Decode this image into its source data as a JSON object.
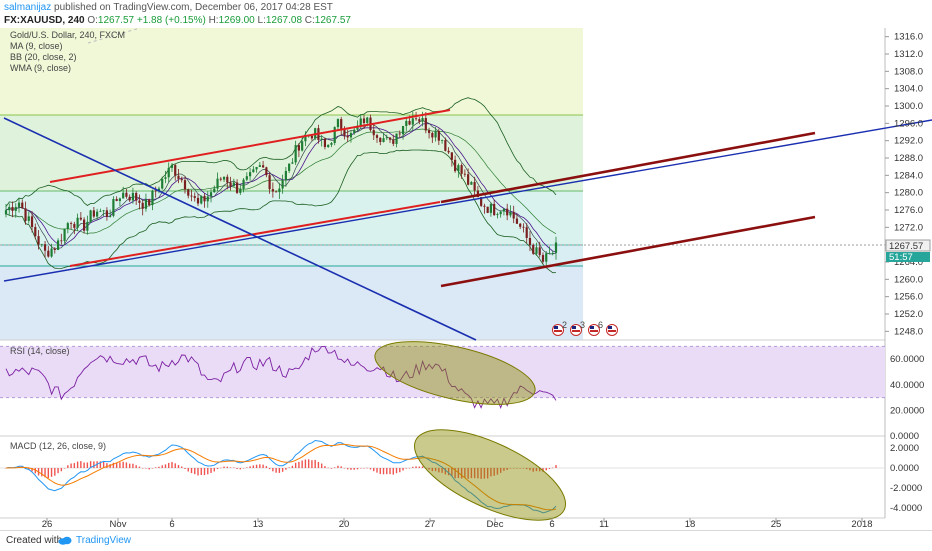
{
  "header": {
    "author": "salmanijaz",
    "published_text": "published on TradingView.com, December 06, 2017 04:28 EST",
    "symbol": "FX:XAUUSD, 240",
    "ohlc_prefix": "O:",
    "open": "1267.57",
    "change": "+1.88 (+0.15%)",
    "high_label": "H:",
    "high": "1269.00",
    "low_label": "L:",
    "low": "1267.08",
    "close_label": "C:",
    "close": "1267.57"
  },
  "legend": {
    "title": "Gold/U.S. Dollar, 240, FXCM",
    "ma": "MA (9, close)",
    "bb": "BB (20, close, 2)",
    "wma": "WMA (9, close)",
    "rsi": "RSI (14, close)",
    "macd": "MACD (12, 26, close, 9)"
  },
  "footer": {
    "created_with": "Created with",
    "brand": "TradingView"
  },
  "colors": {
    "candle_up": "#1e7d34",
    "candle_down": "#7a1f1f",
    "channel_red": "#e02020",
    "trend_blue": "#1a2fb0",
    "dark_red": "#8b0f0f",
    "rsi_line": "#7b1fa2",
    "macd_line": "#2196f3",
    "signal_line": "#f57c00",
    "ellipse_fill": "#8a8a00"
  },
  "chart_data": {
    "type": "candlestick",
    "price_axis": {
      "ticks": [
        "1316.0",
        "1312.0",
        "1308.0",
        "1304.0",
        "1300.0",
        "1296.0",
        "1292.0",
        "1288.0",
        "1284.0",
        "1280.0",
        "1276.0",
        "1272.0",
        "1268.0",
        "1264.0",
        "1260.0",
        "1256.0",
        "1252.0",
        "1248.0"
      ],
      "range": [
        1246,
        1318
      ]
    },
    "last_price": "1267.57",
    "last_price_sub": "51:57",
    "x_axis": {
      "ticks": [
        "26",
        "Nov",
        "6",
        "13",
        "20",
        "27",
        "Dec",
        "6",
        "11",
        "18",
        "25",
        "2018"
      ]
    },
    "trend": [
      1276,
      1278,
      1272,
      1266,
      1268,
      1274,
      1272,
      1276,
      1275,
      1280,
      1279,
      1277,
      1282,
      1286,
      1282,
      1277,
      1280,
      1284,
      1281,
      1283,
      1286,
      1280,
      1285,
      1292,
      1294,
      1290,
      1296,
      1293,
      1297,
      1294,
      1291,
      1296,
      1298,
      1295,
      1293,
      1287,
      1283,
      1278,
      1276,
      1277,
      1273,
      1268,
      1264,
      1267
    ],
    "events": [
      "2",
      "3",
      "6",
      ""
    ],
    "rsi": {
      "ticks": [
        "60.0000",
        "40.0000",
        "20.0000",
        "0.0000"
      ],
      "range": [
        0,
        75
      ],
      "upper_band": 70,
      "lower_band": 30
    },
    "macd": {
      "ticks": [
        "2.0000",
        "0.0000",
        "-2.0000",
        "-4.0000"
      ],
      "range": [
        -5,
        3.2
      ]
    }
  }
}
